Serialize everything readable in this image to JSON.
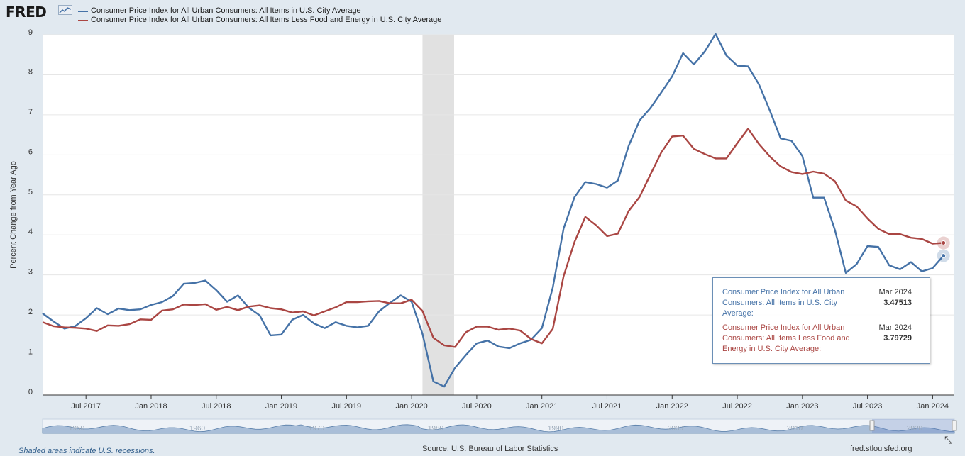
{
  "header": {
    "logo_text": "FRED",
    "logo_icon": "sparkline-icon"
  },
  "legend": [
    {
      "label": "Consumer Price Index for All Urban Consumers: All Items in U.S. City Average",
      "color": "#4572a7"
    },
    {
      "label": "Consumer Price Index for All Urban Consumers: All Items Less Food and Energy in U.S. City Average",
      "color": "#aa4643"
    }
  ],
  "chart_data": {
    "type": "line",
    "ylabel": "Percent Change from Year Ago",
    "ylim": [
      0,
      9
    ],
    "yticks": [
      "0",
      "1",
      "2",
      "3",
      "4",
      "5",
      "6",
      "7",
      "8",
      "9"
    ],
    "x_start": "2017-03",
    "x_end": "2024-03",
    "xticks": [
      "Jul 2017",
      "Jan 2018",
      "Jul 2018",
      "Jan 2019",
      "Jul 2019",
      "Jan 2020",
      "Jul 2020",
      "Jan 2021",
      "Jul 2021",
      "Jan 2022",
      "Jul 2022",
      "Jan 2023",
      "Jul 2023",
      "Jan 2024"
    ],
    "recession": {
      "start": "2020-02",
      "end": "2020-04"
    },
    "grid": true,
    "series": [
      {
        "name": "Consumer Price Index for All Urban Consumers: All Items in U.S. City Average",
        "color": "#4572a7",
        "values": [
          2.04,
          1.84,
          1.66,
          1.72,
          1.92,
          2.17,
          2.02,
          2.16,
          2.12,
          2.14,
          2.25,
          2.32,
          2.47,
          2.78,
          2.8,
          2.86,
          2.62,
          2.33,
          2.49,
          2.18,
          1.99,
          1.49,
          1.51,
          1.88,
          2.0,
          1.79,
          1.67,
          1.82,
          1.73,
          1.69,
          1.73,
          2.09,
          2.3,
          2.49,
          2.33,
          1.53,
          0.34,
          0.21,
          0.68,
          1.0,
          1.29,
          1.36,
          1.21,
          1.17,
          1.29,
          1.38,
          1.67,
          2.68,
          4.16,
          4.94,
          5.32,
          5.27,
          5.18,
          5.36,
          6.23,
          6.86,
          7.17,
          7.56,
          7.96,
          8.54,
          8.26,
          8.58,
          9.02,
          8.48,
          8.23,
          8.21,
          7.76,
          7.11,
          6.41,
          6.35,
          5.97,
          4.93,
          4.93,
          4.12,
          3.05,
          3.27,
          3.72,
          3.7,
          3.24,
          3.14,
          3.32,
          3.09,
          3.17,
          3.48
        ]
      },
      {
        "name": "Consumer Price Index for All Urban Consumers: All Items Less Food and Energy in U.S. City Average",
        "color": "#aa4643",
        "values": [
          1.82,
          1.72,
          1.69,
          1.68,
          1.66,
          1.6,
          1.74,
          1.73,
          1.77,
          1.89,
          1.88,
          2.11,
          2.14,
          2.26,
          2.25,
          2.27,
          2.13,
          2.2,
          2.12,
          2.21,
          2.24,
          2.17,
          2.14,
          2.06,
          2.09,
          1.99,
          2.09,
          2.19,
          2.32,
          2.32,
          2.34,
          2.35,
          2.29,
          2.29,
          2.38,
          2.1,
          1.43,
          1.24,
          1.2,
          1.57,
          1.71,
          1.71,
          1.63,
          1.66,
          1.61,
          1.4,
          1.29,
          1.65,
          2.97,
          3.82,
          4.45,
          4.24,
          3.97,
          4.03,
          4.6,
          4.95,
          5.51,
          6.06,
          6.46,
          6.48,
          6.15,
          6.02,
          5.91,
          5.91,
          6.29,
          6.65,
          6.27,
          5.96,
          5.71,
          5.57,
          5.52,
          5.58,
          5.53,
          5.34,
          4.86,
          4.71,
          4.41,
          4.15,
          4.02,
          4.02,
          3.93,
          3.9,
          3.78,
          3.8
        ]
      }
    ]
  },
  "tooltip": {
    "entries": [
      {
        "label": "Consumer Price Index for All Urban Consumers: All Items in U.S. City Average:",
        "date": "Mar 2024",
        "value": "3.47513",
        "color": "#4572a7"
      },
      {
        "label": "Consumer Price Index for All Urban Consumers: All Items Less Food and Energy in U.S. City Average:",
        "date": "Mar 2024",
        "value": "3.79729",
        "color": "#aa4643"
      }
    ]
  },
  "navigator": {
    "labels": [
      "1950",
      "1960",
      "1970",
      "1980",
      "1990",
      "2000",
      "2010",
      "2020"
    ]
  },
  "footer": {
    "recession_note": "Shaded areas indicate U.S. recessions.",
    "source": "Source: U.S. Bureau of Labor Statistics",
    "site": "fred.stlouisfed.org"
  }
}
